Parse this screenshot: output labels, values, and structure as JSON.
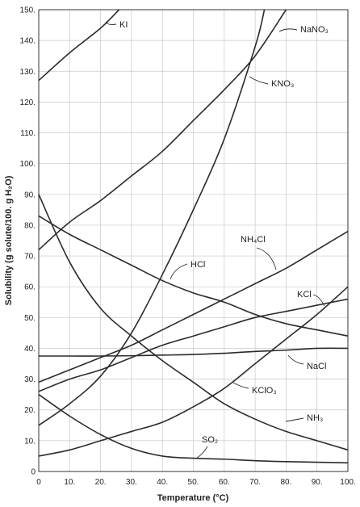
{
  "chart_data": {
    "type": "line",
    "title": "",
    "xlabel": "Temperature (°C)",
    "ylabel": "Solubility (g solute/100. g H₂O)",
    "xlim": [
      0,
      100
    ],
    "ylim": [
      0,
      150
    ],
    "grid": true,
    "legend": "inline labels",
    "x_tick_labels": [
      "0",
      "10.",
      "20.",
      "30.",
      "40.",
      "50.",
      "60.",
      "70.",
      "80.",
      "90.",
      "100."
    ],
    "y_tick_labels": [
      "0",
      "10.",
      "20.",
      "30.",
      "40.",
      "50.",
      "60.",
      "70.",
      "80.",
      "90.",
      "100.",
      "110.",
      "120.",
      "130.",
      "140.",
      "150."
    ],
    "series": [
      {
        "name": "KI",
        "x": [
          0,
          10,
          20,
          26
        ],
        "y": [
          127,
          136,
          144,
          150
        ]
      },
      {
        "name": "NaNO₃",
        "x": [
          0,
          10,
          20,
          30,
          40,
          50,
          60,
          70,
          80
        ],
        "y": [
          72,
          81,
          88,
          96,
          104,
          114,
          124,
          135,
          150
        ]
      },
      {
        "name": "KNO₃",
        "x": [
          0,
          10,
          20,
          30,
          40,
          50,
          60,
          70,
          73
        ],
        "y": [
          15,
          22,
          31,
          45,
          64,
          85,
          108,
          138,
          150
        ]
      },
      {
        "name": "NH₄Cl",
        "x": [
          0,
          10,
          20,
          30,
          40,
          50,
          60,
          70,
          80,
          90,
          100
        ],
        "y": [
          29,
          33,
          37,
          41,
          46,
          51,
          56,
          61,
          66,
          72,
          78
        ]
      },
      {
        "name": "HCl",
        "x": [
          0,
          10,
          20,
          30,
          40,
          50,
          60,
          70,
          80,
          90,
          100
        ],
        "y": [
          83,
          77,
          72,
          67,
          62,
          58,
          55,
          51,
          48,
          46,
          44
        ]
      },
      {
        "name": "KCl",
        "x": [
          0,
          10,
          20,
          30,
          40,
          50,
          60,
          70,
          80,
          90,
          100
        ],
        "y": [
          26,
          30,
          33,
          37,
          41,
          44,
          47,
          50,
          52,
          54,
          56
        ]
      },
      {
        "name": "NaCl",
        "x": [
          0,
          10,
          20,
          30,
          40,
          50,
          60,
          70,
          80,
          90,
          100
        ],
        "y": [
          37.5,
          37.5,
          37.5,
          37.6,
          37.8,
          38,
          38.4,
          39,
          39.4,
          40,
          40
        ]
      },
      {
        "name": "KClO₃",
        "x": [
          0,
          10,
          20,
          30,
          40,
          50,
          60,
          70,
          80,
          90,
          100
        ],
        "y": [
          5,
          7,
          10,
          13,
          16,
          21,
          27,
          35,
          43,
          51,
          60
        ]
      },
      {
        "name": "NH₃",
        "x": [
          0,
          10,
          20,
          30,
          40,
          50,
          60,
          70,
          80,
          90,
          100
        ],
        "y": [
          90,
          68,
          53,
          44,
          36,
          29,
          22,
          17,
          13,
          10,
          7
        ]
      },
      {
        "name": "SO₂",
        "x": [
          0,
          10,
          20,
          30,
          40,
          50,
          60,
          70,
          80,
          90,
          100
        ],
        "y": [
          25,
          18,
          12,
          7.5,
          5,
          4.3,
          4,
          3.5,
          3.2,
          3.0,
          2.8
        ]
      }
    ]
  }
}
